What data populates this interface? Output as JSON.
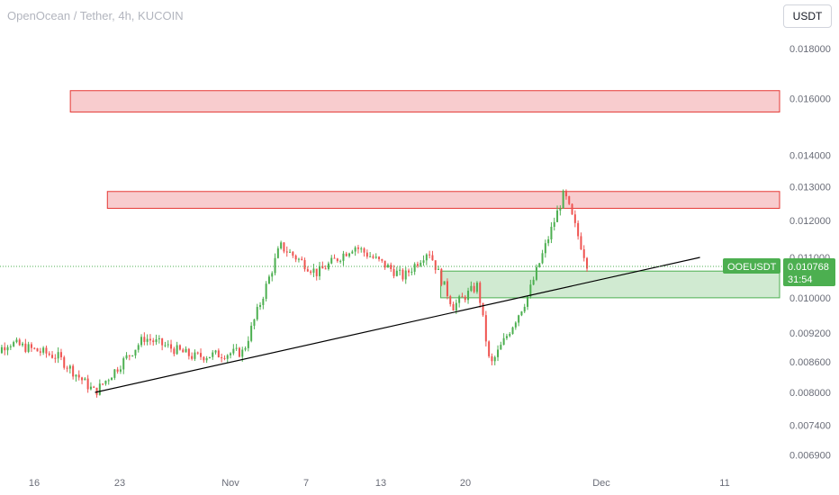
{
  "header": {
    "title": "OpenOcean / Tether, 4h, KUCOIN",
    "currency": "USDT"
  },
  "colors": {
    "up": "#26a69a",
    "up_candle": "#4caf50",
    "down": "#ef5350",
    "zone_red_fill": "#f7c6c9",
    "zone_red_stroke": "#e53935",
    "zone_green_fill": "#c8e6c9",
    "zone_green_stroke": "#4caf50",
    "trendline": "#000000",
    "badge": "#4caf50"
  },
  "badges": {
    "symbol": "OOEUSDT",
    "price": "0.010768",
    "countdown": "31:54"
  },
  "chart_data": {
    "type": "candlestick",
    "x_labels": [
      "16",
      "23",
      "Nov",
      "7",
      "13",
      "20",
      "Dec",
      "11"
    ],
    "y_ticks": [
      "0.018000",
      "0.016000",
      "0.014000",
      "0.013000",
      "0.012000",
      "0.011000",
      "0.010000",
      "0.009200",
      "0.008600",
      "0.008000",
      "0.007400",
      "0.006900"
    ],
    "y_scale": "log",
    "last_price": 0.010768,
    "zones": [
      {
        "kind": "resistance",
        "from": "Oct 19",
        "to": "end",
        "low": 0.0155,
        "high": 0.0163
      },
      {
        "kind": "resistance",
        "from": "Oct 22",
        "to": "end",
        "low": 0.01235,
        "high": 0.01285
      },
      {
        "kind": "support",
        "from": "Nov 18",
        "to": "end",
        "low": 0.01,
        "high": 0.01065
      }
    ],
    "trendline": {
      "from": {
        "date": "Oct 21",
        "price": 0.008
      },
      "to": {
        "date": "Dec 9",
        "price": 0.011
      }
    },
    "candles_approx": [
      {
        "date": "Oct 12",
        "close": 0.0086
      },
      {
        "date": "Oct 14",
        "close": 0.009
      },
      {
        "date": "Oct 18",
        "close": 0.0087
      },
      {
        "date": "Oct 21",
        "close": 0.008
      },
      {
        "date": "Oct 25",
        "close": 0.0091
      },
      {
        "date": "Oct 29",
        "close": 0.0087
      },
      {
        "date": "Nov 2",
        "close": 0.0088
      },
      {
        "date": "Nov 5",
        "close": 0.0113
      },
      {
        "date": "Nov 8",
        "close": 0.0106
      },
      {
        "date": "Nov 11",
        "close": 0.0113
      },
      {
        "date": "Nov 15",
        "close": 0.0105
      },
      {
        "date": "Nov 17",
        "close": 0.0112
      },
      {
        "date": "Nov 19",
        "close": 0.0098
      },
      {
        "date": "Nov 21",
        "close": 0.0103
      },
      {
        "date": "Nov 22",
        "close": 0.0085
      },
      {
        "date": "Nov 25",
        "close": 0.01
      },
      {
        "date": "Nov 28",
        "close": 0.0128
      },
      {
        "date": "Nov 30",
        "close": 0.0107
      }
    ]
  }
}
